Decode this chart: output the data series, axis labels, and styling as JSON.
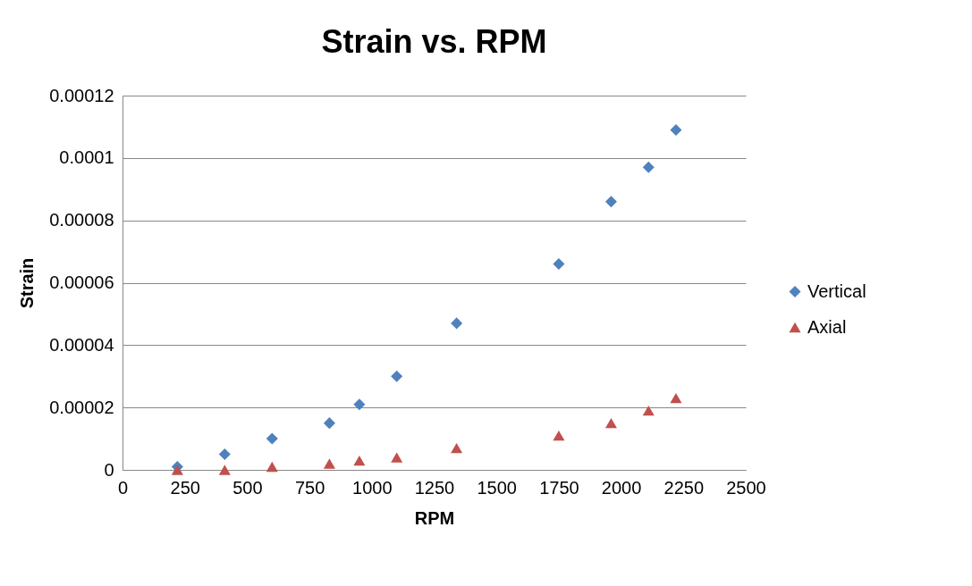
{
  "chart_data": {
    "type": "scatter",
    "title": "Strain vs. RPM",
    "xlabel": "RPM",
    "ylabel": "Strain",
    "x": [
      220,
      410,
      600,
      830,
      950,
      1100,
      1340,
      1750,
      1960,
      2110,
      2220
    ],
    "series": [
      {
        "name": "Vertical",
        "color": "#4f81bd",
        "marker": "diamond",
        "values": [
          1e-06,
          5e-06,
          1e-05,
          1.5e-05,
          2.1e-05,
          3e-05,
          4.7e-05,
          6.6e-05,
          8.6e-05,
          9.7e-05,
          0.000109
        ]
      },
      {
        "name": "Axial",
        "color": "#c0504d",
        "marker": "triangle",
        "values": [
          0,
          0,
          1e-06,
          2e-06,
          3e-06,
          4e-06,
          7e-06,
          1.1e-05,
          1.5e-05,
          1.9e-05,
          2.3e-05
        ]
      }
    ],
    "xlim": [
      0,
      2500
    ],
    "xticks": [
      0,
      250,
      500,
      750,
      1000,
      1250,
      1500,
      1750,
      2000,
      2250,
      2500
    ],
    "ylim": [
      0,
      0.00012
    ],
    "yticks": [
      0,
      {
        "value": 2e-05,
        "label": "0.00002"
      },
      {
        "value": 4e-05,
        "label": "0.00004"
      },
      {
        "value": 6e-05,
        "label": "0.00006"
      },
      {
        "value": 8e-05,
        "label": "0.00008"
      },
      0.0001,
      0.00012
    ],
    "grid": "y",
    "legend": "right"
  }
}
